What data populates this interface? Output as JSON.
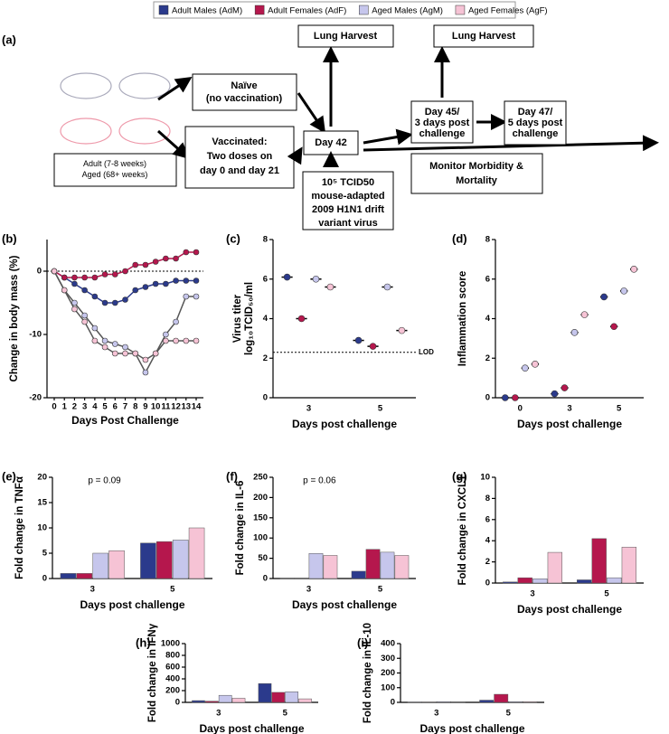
{
  "legend": [
    {
      "name": "Adult Males (AdM)",
      "color": "#2b3a8c"
    },
    {
      "name": "Adult Females (AdF)",
      "color": "#b5174d"
    },
    {
      "name": "Aged Males (AgM)",
      "color": "#c6c6ec"
    },
    {
      "name": "Aged Females (AgF)",
      "color": "#f6c3d5"
    }
  ],
  "diagram": {
    "panel": "(a)",
    "cohort": [
      "Adult (7-8 weeks)",
      "Aged (68+ weeks)"
    ],
    "naive": [
      "Naïve",
      "(no vaccination)"
    ],
    "vaccinated": [
      "Vaccinated:",
      "Two doses on",
      "day 0 and day 21"
    ],
    "day42": "Day 42",
    "harvest1": "Lung Harvest",
    "challenge": [
      "10⁵ TCID50",
      "mouse-adapted",
      "2009 H1N1 drift",
      "variant virus"
    ],
    "day45": [
      "Day 45/",
      "3 days post",
      "challenge"
    ],
    "harvest2": "Lung Harvest",
    "day47": [
      "Day 47/",
      "5 days post",
      "challenge"
    ],
    "monitor": [
      "Monitor Morbidity &",
      "Mortality"
    ]
  },
  "chart_data": [
    {
      "type": "line",
      "panel": "(b)",
      "ylabel": "Change in body mass (%)",
      "xlabel": "Days Post Challenge",
      "x": [
        0,
        1,
        2,
        3,
        4,
        5,
        6,
        7,
        8,
        9,
        10,
        11,
        12,
        13,
        14
      ],
      "xlim": [
        0,
        14
      ],
      "xticks": [
        0,
        1,
        2,
        3,
        4,
        5,
        6,
        7,
        8,
        9,
        10,
        11,
        12,
        13,
        14
      ],
      "ylim": [
        -20,
        5
      ],
      "yticks": [
        -20,
        -10,
        0
      ],
      "zero_line": true,
      "series": [
        {
          "values": [
            0,
            -1,
            -2,
            -3,
            -4,
            -5,
            -5,
            -4.5,
            -3,
            -2.5,
            -2,
            -2,
            -1.5,
            -1.5,
            -1.5
          ]
        },
        {
          "values": [
            0,
            -1,
            -1,
            -1,
            -1,
            -0.5,
            -0.5,
            0,
            1,
            1,
            1.5,
            2,
            2,
            3,
            3
          ]
        },
        {
          "values": [
            0,
            -3,
            -5,
            -7,
            -9,
            -11,
            -11.5,
            -12,
            -13,
            -16,
            -13,
            -10,
            -8,
            -4,
            -4
          ]
        },
        {
          "values": [
            0,
            -3,
            -6,
            -8,
            -11,
            -12,
            -13,
            -13,
            -13,
            -14,
            -13,
            -11,
            -11,
            -11,
            -11
          ]
        }
      ]
    },
    {
      "type": "dot",
      "panel": "(c)",
      "ylabel": [
        "Virus titer",
        "log₁₀TCID₅₀/ml"
      ],
      "xlabel": "Days post challenge",
      "categories": [
        "3",
        "5"
      ],
      "ylim": [
        0,
        8
      ],
      "yticks": [
        0,
        2,
        4,
        6,
        8
      ],
      "lod": 2.3,
      "lod_label": "LOD",
      "series": [
        {
          "values": [
            6.1,
            2.9
          ]
        },
        {
          "values": [
            4.0,
            2.6
          ]
        },
        {
          "values": [
            6.0,
            5.6
          ]
        },
        {
          "values": [
            5.6,
            3.4
          ]
        }
      ]
    },
    {
      "type": "dot",
      "panel": "(d)",
      "ylabel": [
        "Inflammation score"
      ],
      "xlabel": "Days post challenge",
      "categories": [
        "0",
        "3",
        "5"
      ],
      "ylim": [
        0,
        8
      ],
      "yticks": [
        0,
        2,
        4,
        6,
        8
      ],
      "series": [
        {
          "values": [
            0,
            0.2,
            5.1
          ]
        },
        {
          "values": [
            0,
            0.5,
            3.6
          ]
        },
        {
          "values": [
            1.5,
            3.3,
            5.4
          ]
        },
        {
          "values": [
            1.7,
            4.2,
            6.5
          ]
        }
      ]
    },
    {
      "type": "bar",
      "panel": "(e)",
      "ylabel": [
        "Fold change in TNFα"
      ],
      "xlabel": "Days post challenge",
      "categories": [
        "3",
        "5"
      ],
      "ylim": [
        0,
        20
      ],
      "yticks": [
        0,
        5,
        10,
        15,
        20
      ],
      "annotation": "p = 0.09",
      "series": [
        {
          "values": [
            1,
            7
          ]
        },
        {
          "values": [
            1,
            7.3
          ]
        },
        {
          "values": [
            5,
            7.6
          ]
        },
        {
          "values": [
            5.5,
            10
          ]
        }
      ]
    },
    {
      "type": "bar",
      "panel": "(f)",
      "ylabel": [
        "Fold change in IL-6"
      ],
      "xlabel": "Days post challenge",
      "categories": [
        "3",
        "5"
      ],
      "ylim": [
        0,
        250
      ],
      "yticks": [
        0,
        50,
        100,
        150,
        200,
        250
      ],
      "annotation": "p = 0.06",
      "series": [
        {
          "values": [
            1,
            18
          ]
        },
        {
          "values": [
            1,
            72
          ]
        },
        {
          "values": [
            62,
            65
          ]
        },
        {
          "values": [
            57,
            57
          ]
        }
      ]
    },
    {
      "type": "bar",
      "panel": "(g)",
      "ylabel": [
        "Fold change in CXCL1"
      ],
      "xlabel": "Days post challenge",
      "categories": [
        "3",
        "5"
      ],
      "ylim": [
        0,
        10
      ],
      "yticks": [
        0,
        2,
        4,
        6,
        8,
        10
      ],
      "series": [
        {
          "values": [
            0.1,
            0.3
          ]
        },
        {
          "values": [
            0.5,
            4.2
          ]
        },
        {
          "values": [
            0.4,
            0.5
          ]
        },
        {
          "values": [
            2.9,
            3.4
          ]
        }
      ]
    },
    {
      "type": "bar",
      "panel": "(h)",
      "ylabel": [
        "Fold change in IFNγ"
      ],
      "xlabel": "Days post challenge",
      "categories": [
        "3",
        "5"
      ],
      "ylim": [
        0,
        1000
      ],
      "yticks": [
        0,
        200,
        400,
        600,
        800,
        1000
      ],
      "series": [
        {
          "values": [
            30,
            320
          ]
        },
        {
          "values": [
            20,
            170
          ]
        },
        {
          "values": [
            120,
            180
          ]
        },
        {
          "values": [
            70,
            60
          ]
        }
      ]
    },
    {
      "type": "bar",
      "panel": "(i)",
      "ylabel": [
        "Fold change in IL-10"
      ],
      "xlabel": "Days post challenge",
      "categories": [
        "3",
        "5"
      ],
      "ylim": [
        0,
        400
      ],
      "yticks": [
        0,
        100,
        200,
        300,
        400
      ],
      "series": [
        {
          "values": [
            1,
            15
          ]
        },
        {
          "values": [
            1,
            55
          ]
        },
        {
          "values": [
            5,
            5
          ]
        },
        {
          "values": [
            3,
            5
          ]
        }
      ]
    }
  ]
}
